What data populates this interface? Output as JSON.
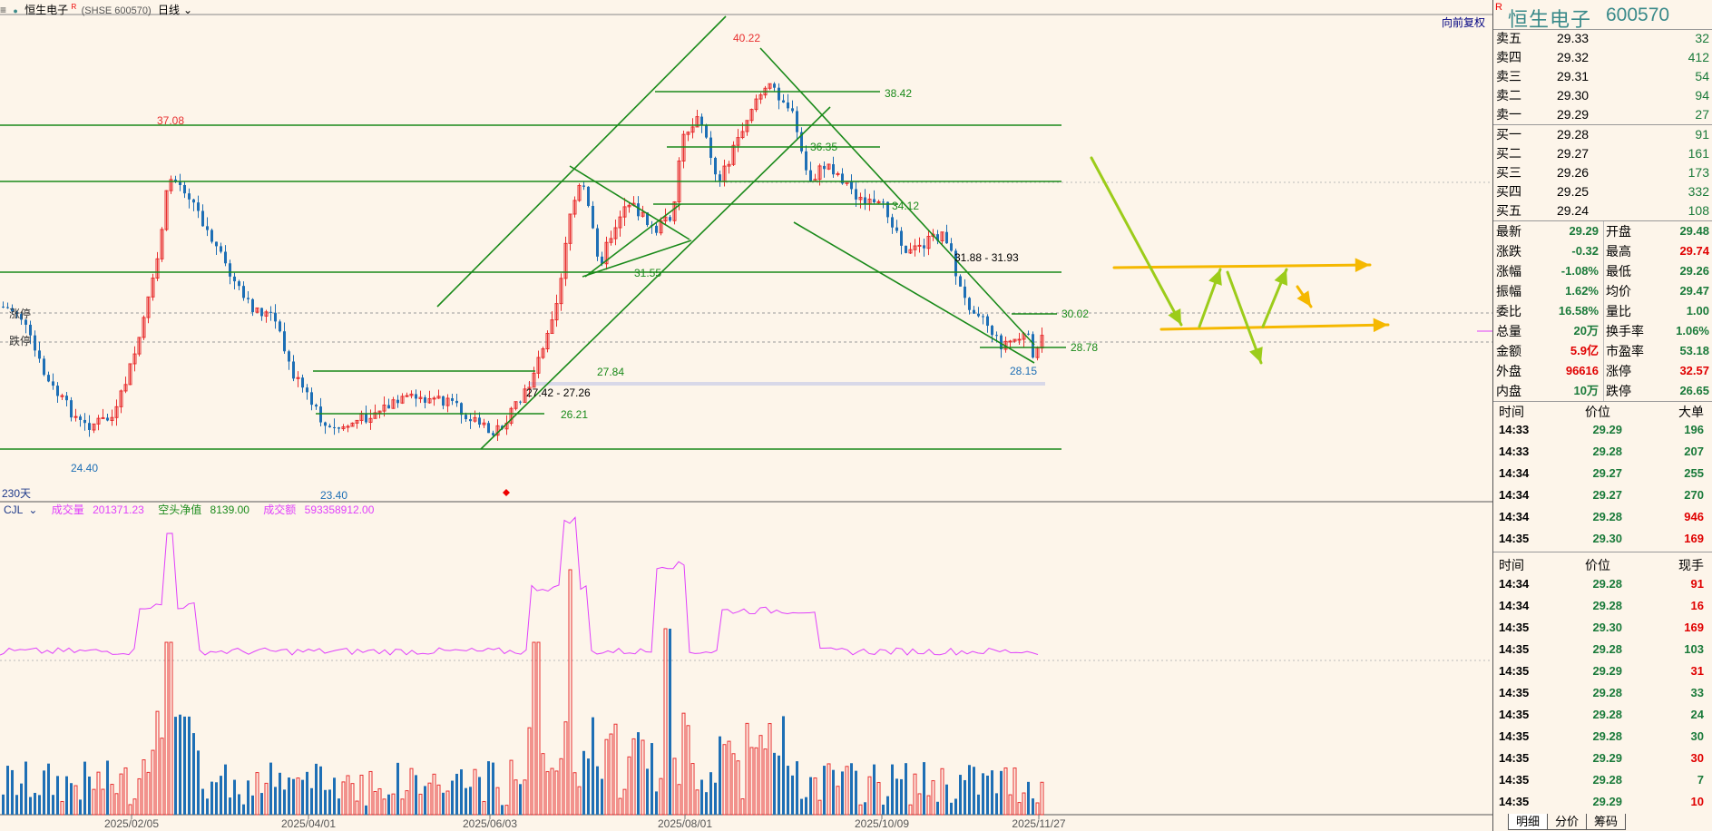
{
  "header": {
    "badge": "R",
    "stock_name": "恒生电子",
    "market_code": "(SHSE 600570)",
    "period": "日线"
  },
  "toolbar": {
    "restore_label": "向前复权"
  },
  "price_chart": {
    "day_count_label": "230天",
    "left_labels": [
      "涨停",
      "跌停"
    ],
    "price_labels": [
      "40.22",
      "38.42",
      "37.08",
      "36.35",
      "34.12",
      "31.88 - 31.93",
      "31.55",
      "30.02",
      "28.78",
      "28.15",
      "27.84",
      "27.42 - 27.26",
      "26.21",
      "24.40",
      "23.40"
    ],
    "date_labels": [
      "2025/02/05",
      "2025/04/01",
      "2025/06/03",
      "2025/08/01",
      "2025/10/09",
      "2025/11/27"
    ]
  },
  "volume_legend": {
    "name": "CJL",
    "volume_label": "成交量",
    "volume_value": "201371.23",
    "short_label": "空头净值",
    "short_value": "8139.00",
    "turnover_label": "成交额",
    "turnover_value": "593358912.00"
  },
  "panel": {
    "badge": "R",
    "name": "恒生电子",
    "code": "600570",
    "asks": [
      {
        "label": "卖五",
        "price": "29.33",
        "vol": "32"
      },
      {
        "label": "卖四",
        "price": "29.32",
        "vol": "412"
      },
      {
        "label": "卖三",
        "price": "29.31",
        "vol": "54"
      },
      {
        "label": "卖二",
        "price": "29.30",
        "vol": "94"
      },
      {
        "label": "卖一",
        "price": "29.29",
        "vol": "27"
      }
    ],
    "bids": [
      {
        "label": "买一",
        "price": "29.28",
        "vol": "91"
      },
      {
        "label": "买二",
        "price": "29.27",
        "vol": "161"
      },
      {
        "label": "买三",
        "price": "29.26",
        "vol": "173"
      },
      {
        "label": "买四",
        "price": "29.25",
        "vol": "332"
      },
      {
        "label": "买五",
        "price": "29.24",
        "vol": "108"
      }
    ],
    "quotes": [
      {
        "l": "最新",
        "v": "29.29",
        "lc": "green",
        "l2": "开盘",
        "v2": "29.48",
        "c2": "green"
      },
      {
        "l": "涨跌",
        "v": "-0.32",
        "lc": "green",
        "l2": "最高",
        "v2": "29.74",
        "c2": "red"
      },
      {
        "l": "涨幅",
        "v": "-1.08%",
        "lc": "green",
        "l2": "最低",
        "v2": "29.26",
        "c2": "green"
      },
      {
        "l": "振幅",
        "v": "1.62%",
        "lc": "green",
        "l2": "均价",
        "v2": "29.47",
        "c2": "green"
      },
      {
        "l": "委比",
        "v": "16.58%",
        "lc": "green",
        "l2": "量比",
        "v2": "1.00",
        "c2": "green"
      },
      {
        "l": "总量",
        "v": "20万",
        "lc": "green",
        "l2": "换手率",
        "v2": "1.06%",
        "c2": "green"
      },
      {
        "l": "金额",
        "v": "5.9亿",
        "lc": "red",
        "l2": "市盈率",
        "v2": "53.18",
        "c2": "green"
      },
      {
        "l": "外盘",
        "v": "96616",
        "lc": "red",
        "l2": "涨停",
        "v2": "32.57",
        "c2": "red"
      },
      {
        "l": "内盘",
        "v": "10万",
        "lc": "green",
        "l2": "跌停",
        "v2": "26.65",
        "c2": "green"
      }
    ],
    "bigorder_headers": [
      "时间",
      "价位",
      "大单"
    ],
    "bigorders": [
      {
        "t": "14:33",
        "p": "29.29",
        "v": "196",
        "c": "green"
      },
      {
        "t": "14:33",
        "p": "29.28",
        "v": "207",
        "c": "green"
      },
      {
        "t": "14:34",
        "p": "29.27",
        "v": "255",
        "c": "green"
      },
      {
        "t": "14:34",
        "p": "29.27",
        "v": "270",
        "c": "green"
      },
      {
        "t": "14:34",
        "p": "29.28",
        "v": "946",
        "c": "red"
      },
      {
        "t": "14:35",
        "p": "29.30",
        "v": "169",
        "c": "red"
      }
    ],
    "tick_headers": [
      "时间",
      "价位",
      "现手"
    ],
    "ticks": [
      {
        "t": "14:34",
        "p": "29.28",
        "v": "91",
        "c": "red"
      },
      {
        "t": "14:34",
        "p": "29.28",
        "v": "16",
        "c": "red"
      },
      {
        "t": "14:35",
        "p": "29.30",
        "v": "169",
        "c": "red"
      },
      {
        "t": "14:35",
        "p": "29.28",
        "v": "103",
        "c": "green"
      },
      {
        "t": "14:35",
        "p": "29.29",
        "v": "31",
        "c": "red"
      },
      {
        "t": "14:35",
        "p": "29.28",
        "v": "33",
        "c": "green"
      },
      {
        "t": "14:35",
        "p": "29.28",
        "v": "24",
        "c": "green"
      },
      {
        "t": "14:35",
        "p": "29.28",
        "v": "30",
        "c": "green"
      },
      {
        "t": "14:35",
        "p": "29.29",
        "v": "30",
        "c": "red"
      },
      {
        "t": "14:35",
        "p": "29.28",
        "v": "7",
        "c": "green"
      },
      {
        "t": "14:35",
        "p": "29.29",
        "v": "10",
        "c": "red"
      }
    ],
    "tabs": [
      "明细",
      "分价",
      "筹码"
    ]
  },
  "colors": {
    "up": "#E83030",
    "down": "#1E6FB5",
    "trend": "#1A8A1A",
    "arrow_green": "#9CCC1A",
    "arrow_gold": "#F5B800",
    "ma": "#E040FB"
  }
}
